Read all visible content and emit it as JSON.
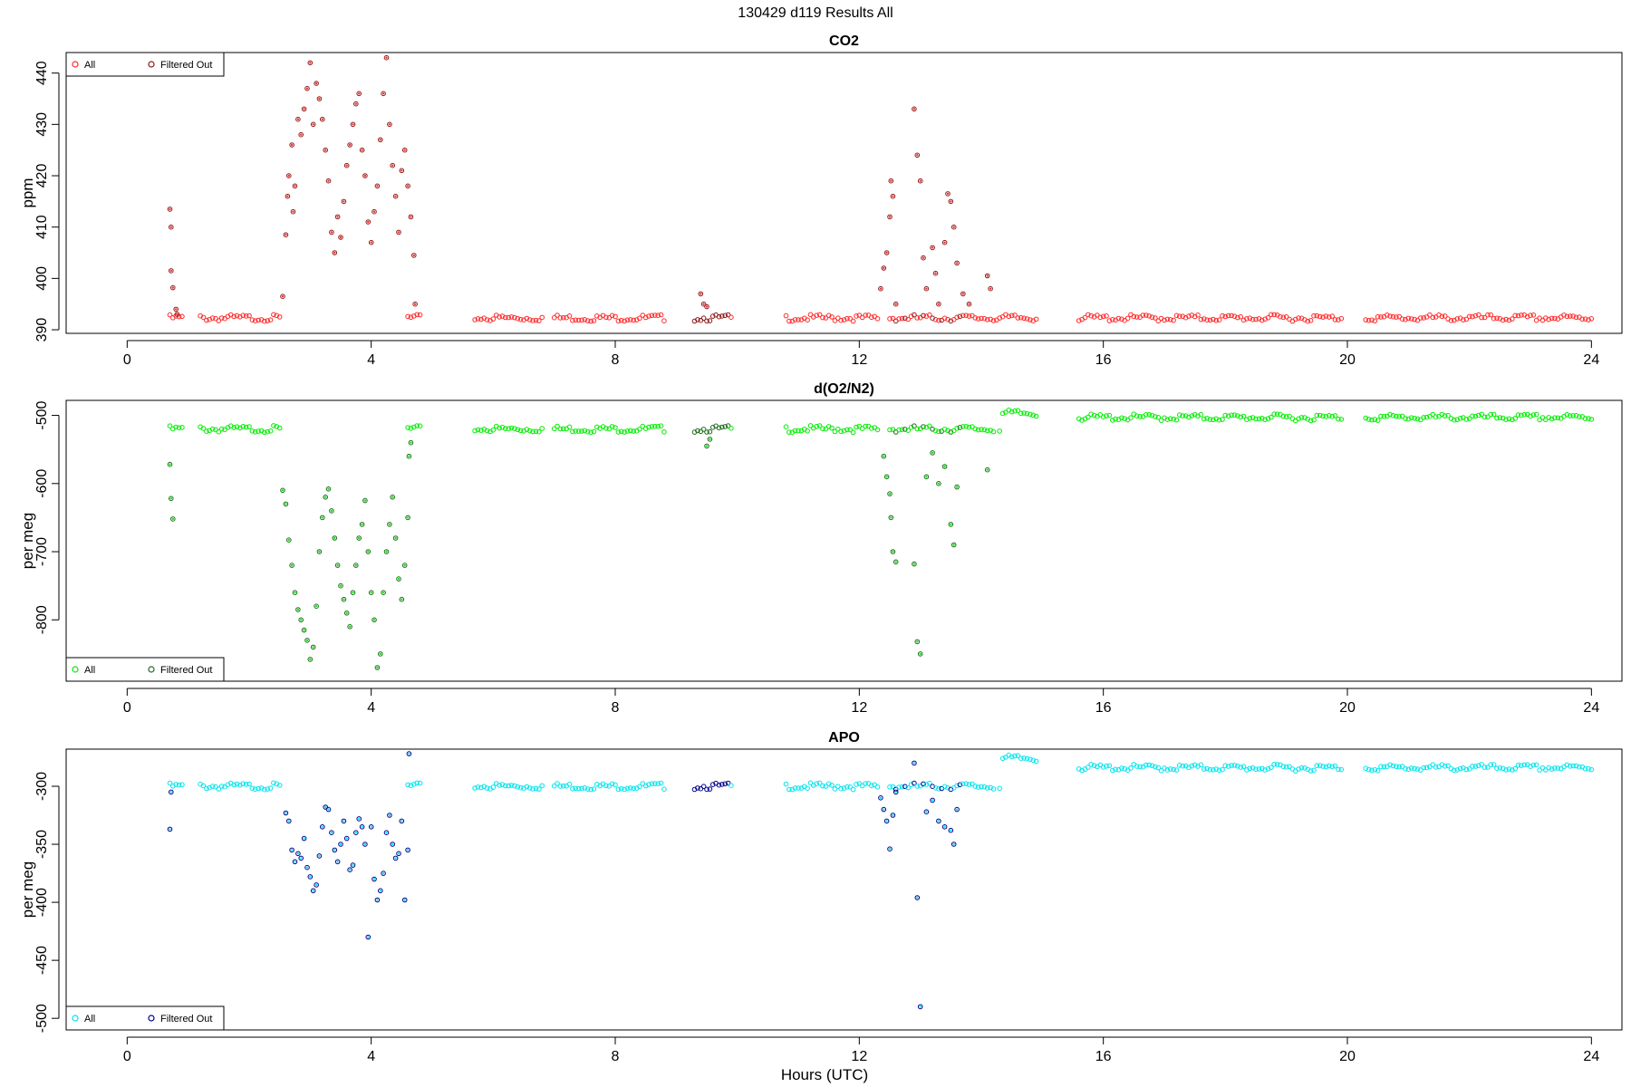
{
  "figure": {
    "title": "130429   d119   Results All",
    "xlabel": "Hours (UTC)"
  },
  "chart_data": [
    {
      "type": "scatter",
      "title": "CO2",
      "ylabel": "ppm",
      "xlim": [
        -1,
        24.5
      ],
      "ylim": [
        389.3,
        444
      ],
      "xticks": [
        0,
        4,
        8,
        12,
        16,
        20,
        24
      ],
      "yticks": [
        390,
        400,
        410,
        420,
        430,
        440
      ],
      "legend_position": "top-left",
      "series": [
        {
          "name": "All",
          "color": "#ff2a2a",
          "marker": "circle"
        },
        {
          "name": "Filtered Out",
          "color": "#8b1a1a",
          "marker": "circle"
        }
      ],
      "segments": [
        [
          0.7,
          0.9
        ],
        [
          1.2,
          2.5
        ],
        [
          4.6,
          4.8
        ],
        [
          5.7,
          6.8
        ],
        [
          7.0,
          8.8
        ],
        [
          9.3,
          9.9
        ],
        [
          10.8,
          12.3
        ],
        [
          12.5,
          14.9
        ],
        [
          15.6,
          19.9
        ],
        [
          20.3,
          24.0
        ]
      ],
      "baseline": 392.3,
      "anomalies": [
        {
          "x": 0.7,
          "y": 413.5
        },
        {
          "x": 0.72,
          "y": 410
        },
        {
          "x": 0.72,
          "y": 401.5
        },
        {
          "x": 0.75,
          "y": 398.2
        },
        {
          "x": 0.8,
          "y": 394
        },
        {
          "x": 0.82,
          "y": 393
        },
        {
          "x": 2.55,
          "y": 396.5
        },
        {
          "x": 2.6,
          "y": 408.5
        },
        {
          "x": 2.63,
          "y": 416
        },
        {
          "x": 2.65,
          "y": 420
        },
        {
          "x": 2.7,
          "y": 426
        },
        {
          "x": 2.72,
          "y": 413
        },
        {
          "x": 2.75,
          "y": 418
        },
        {
          "x": 2.8,
          "y": 431
        },
        {
          "x": 2.85,
          "y": 428
        },
        {
          "x": 2.9,
          "y": 433
        },
        {
          "x": 2.95,
          "y": 437
        },
        {
          "x": 3.0,
          "y": 442
        },
        {
          "x": 3.05,
          "y": 430
        },
        {
          "x": 3.1,
          "y": 438
        },
        {
          "x": 3.15,
          "y": 435
        },
        {
          "x": 3.2,
          "y": 431
        },
        {
          "x": 3.25,
          "y": 425
        },
        {
          "x": 3.3,
          "y": 419
        },
        {
          "x": 3.35,
          "y": 409
        },
        {
          "x": 3.4,
          "y": 405
        },
        {
          "x": 3.45,
          "y": 412
        },
        {
          "x": 3.5,
          "y": 408
        },
        {
          "x": 3.55,
          "y": 415
        },
        {
          "x": 3.6,
          "y": 422
        },
        {
          "x": 3.65,
          "y": 426
        },
        {
          "x": 3.7,
          "y": 430
        },
        {
          "x": 3.75,
          "y": 434
        },
        {
          "x": 3.8,
          "y": 436
        },
        {
          "x": 3.85,
          "y": 425
        },
        {
          "x": 3.9,
          "y": 420
        },
        {
          "x": 3.95,
          "y": 411
        },
        {
          "x": 4.0,
          "y": 407
        },
        {
          "x": 4.05,
          "y": 413
        },
        {
          "x": 4.1,
          "y": 418
        },
        {
          "x": 4.15,
          "y": 427
        },
        {
          "x": 4.2,
          "y": 436
        },
        {
          "x": 4.25,
          "y": 443
        },
        {
          "x": 4.3,
          "y": 430
        },
        {
          "x": 4.35,
          "y": 422
        },
        {
          "x": 4.4,
          "y": 416
        },
        {
          "x": 4.45,
          "y": 409
        },
        {
          "x": 4.5,
          "y": 421
        },
        {
          "x": 4.55,
          "y": 425
        },
        {
          "x": 4.6,
          "y": 418
        },
        {
          "x": 4.65,
          "y": 412
        },
        {
          "x": 4.7,
          "y": 404.5
        },
        {
          "x": 4.72,
          "y": 395
        },
        {
          "x": 9.4,
          "y": 397
        },
        {
          "x": 9.45,
          "y": 395
        },
        {
          "x": 9.5,
          "y": 394.5
        },
        {
          "x": 12.35,
          "y": 398
        },
        {
          "x": 12.4,
          "y": 402
        },
        {
          "x": 12.45,
          "y": 405
        },
        {
          "x": 12.5,
          "y": 412
        },
        {
          "x": 12.52,
          "y": 419
        },
        {
          "x": 12.55,
          "y": 416
        },
        {
          "x": 12.6,
          "y": 395
        },
        {
          "x": 12.9,
          "y": 433
        },
        {
          "x": 12.95,
          "y": 424
        },
        {
          "x": 13.0,
          "y": 419
        },
        {
          "x": 13.05,
          "y": 404
        },
        {
          "x": 13.1,
          "y": 398
        },
        {
          "x": 13.2,
          "y": 406
        },
        {
          "x": 13.25,
          "y": 401
        },
        {
          "x": 13.3,
          "y": 395
        },
        {
          "x": 13.4,
          "y": 407
        },
        {
          "x": 13.45,
          "y": 416.5
        },
        {
          "x": 13.5,
          "y": 415
        },
        {
          "x": 13.55,
          "y": 410
        },
        {
          "x": 13.6,
          "y": 403
        },
        {
          "x": 13.7,
          "y": 397
        },
        {
          "x": 13.8,
          "y": 395
        },
        {
          "x": 14.1,
          "y": 400.5
        },
        {
          "x": 14.15,
          "y": 398
        }
      ]
    },
    {
      "type": "scatter",
      "title": "d(O2/N2)",
      "ylabel": "per meg",
      "xlim": [
        -1,
        24.5
      ],
      "ylim": [
        -890,
        -478
      ],
      "xticks": [
        0,
        4,
        8,
        12,
        16,
        20,
        24
      ],
      "yticks": [
        -500,
        -600,
        -700,
        -800
      ],
      "legend_position": "bottom-left",
      "series": [
        {
          "name": "All",
          "color": "#00ee00",
          "marker": "circle"
        },
        {
          "name": "Filtered Out",
          "color": "#1e6b1e",
          "marker": "circle"
        }
      ],
      "segments": [
        [
          0.7,
          0.9
        ],
        [
          1.2,
          2.5
        ],
        [
          4.6,
          4.8
        ],
        [
          5.7,
          6.8
        ],
        [
          7.0,
          8.8
        ],
        [
          9.3,
          9.9
        ],
        [
          10.8,
          12.3
        ],
        [
          12.5,
          14.2
        ],
        [
          14.3,
          14.9
        ],
        [
          15.6,
          19.9
        ],
        [
          20.3,
          24.0
        ]
      ],
      "baseline": -520,
      "anomalies": [
        {
          "x": 0.7,
          "y": -572
        },
        {
          "x": 0.72,
          "y": -622
        },
        {
          "x": 0.75,
          "y": -652
        },
        {
          "x": 2.55,
          "y": -610
        },
        {
          "x": 2.6,
          "y": -630
        },
        {
          "x": 2.65,
          "y": -683
        },
        {
          "x": 2.7,
          "y": -720
        },
        {
          "x": 2.75,
          "y": -760
        },
        {
          "x": 2.8,
          "y": -785
        },
        {
          "x": 2.85,
          "y": -800
        },
        {
          "x": 2.9,
          "y": -815
        },
        {
          "x": 2.95,
          "y": -830
        },
        {
          "x": 3.0,
          "y": -858
        },
        {
          "x": 3.05,
          "y": -840
        },
        {
          "x": 3.1,
          "y": -780
        },
        {
          "x": 3.15,
          "y": -700
        },
        {
          "x": 3.2,
          "y": -650
        },
        {
          "x": 3.25,
          "y": -620
        },
        {
          "x": 3.3,
          "y": -608
        },
        {
          "x": 3.35,
          "y": -640
        },
        {
          "x": 3.4,
          "y": -680
        },
        {
          "x": 3.45,
          "y": -720
        },
        {
          "x": 3.5,
          "y": -750
        },
        {
          "x": 3.55,
          "y": -770
        },
        {
          "x": 3.6,
          "y": -790
        },
        {
          "x": 3.65,
          "y": -810
        },
        {
          "x": 3.7,
          "y": -760
        },
        {
          "x": 3.75,
          "y": -720
        },
        {
          "x": 3.8,
          "y": -680
        },
        {
          "x": 3.85,
          "y": -660
        },
        {
          "x": 3.9,
          "y": -625
        },
        {
          "x": 3.95,
          "y": -700
        },
        {
          "x": 4.0,
          "y": -760
        },
        {
          "x": 4.05,
          "y": -800
        },
        {
          "x": 4.1,
          "y": -870
        },
        {
          "x": 4.15,
          "y": -850
        },
        {
          "x": 4.2,
          "y": -760
        },
        {
          "x": 4.25,
          "y": -700
        },
        {
          "x": 4.3,
          "y": -660
        },
        {
          "x": 4.35,
          "y": -620
        },
        {
          "x": 4.4,
          "y": -680
        },
        {
          "x": 4.45,
          "y": -740
        },
        {
          "x": 4.5,
          "y": -770
        },
        {
          "x": 4.55,
          "y": -720
        },
        {
          "x": 4.6,
          "y": -650
        },
        {
          "x": 4.62,
          "y": -560
        },
        {
          "x": 4.65,
          "y": -540
        },
        {
          "x": 9.5,
          "y": -545
        },
        {
          "x": 9.55,
          "y": -535
        },
        {
          "x": 12.4,
          "y": -560
        },
        {
          "x": 12.45,
          "y": -590
        },
        {
          "x": 12.5,
          "y": -615
        },
        {
          "x": 12.52,
          "y": -650
        },
        {
          "x": 12.55,
          "y": -700
        },
        {
          "x": 12.6,
          "y": -715
        },
        {
          "x": 12.9,
          "y": -718
        },
        {
          "x": 12.95,
          "y": -832
        },
        {
          "x": 13.0,
          "y": -850
        },
        {
          "x": 13.1,
          "y": -590
        },
        {
          "x": 13.2,
          "y": -555
        },
        {
          "x": 13.3,
          "y": -600
        },
        {
          "x": 13.4,
          "y": -575
        },
        {
          "x": 13.5,
          "y": -660
        },
        {
          "x": 13.55,
          "y": -690
        },
        {
          "x": 13.6,
          "y": -605
        },
        {
          "x": 14.1,
          "y": -580
        }
      ]
    },
    {
      "type": "scatter",
      "title": "APO",
      "ylabel": "per meg",
      "xlim": [
        -1,
        24.5
      ],
      "ylim": [
        -510,
        -268
      ],
      "xticks": [
        0,
        4,
        8,
        12,
        16,
        20,
        24
      ],
      "yticks": [
        -300,
        -350,
        -400,
        -450,
        -500
      ],
      "legend_position": "bottom-left",
      "series": [
        {
          "name": "All",
          "color": "#00e5ee",
          "marker": "circle"
        },
        {
          "name": "Filtered Out",
          "color": "#00008b",
          "marker": "circle"
        }
      ],
      "segments": [
        [
          0.7,
          0.9
        ],
        [
          1.2,
          2.5
        ],
        [
          4.6,
          4.8
        ],
        [
          5.7,
          6.8
        ],
        [
          7.0,
          8.8
        ],
        [
          9.3,
          9.9
        ],
        [
          10.8,
          12.3
        ],
        [
          12.5,
          14.2
        ],
        [
          14.3,
          14.9
        ],
        [
          15.6,
          19.9
        ],
        [
          20.3,
          24.0
        ]
      ],
      "baseline": -300,
      "anomalies": [
        {
          "x": 0.7,
          "y": -337
        },
        {
          "x": 0.72,
          "y": -305
        },
        {
          "x": 2.6,
          "y": -323
        },
        {
          "x": 2.65,
          "y": -330
        },
        {
          "x": 2.7,
          "y": -355
        },
        {
          "x": 2.75,
          "y": -365
        },
        {
          "x": 2.8,
          "y": -358
        },
        {
          "x": 2.85,
          "y": -362
        },
        {
          "x": 2.9,
          "y": -345
        },
        {
          "x": 2.95,
          "y": -370
        },
        {
          "x": 3.0,
          "y": -378
        },
        {
          "x": 3.05,
          "y": -390
        },
        {
          "x": 3.1,
          "y": -385
        },
        {
          "x": 3.15,
          "y": -360
        },
        {
          "x": 3.2,
          "y": -335
        },
        {
          "x": 3.25,
          "y": -318
        },
        {
          "x": 3.3,
          "y": -320
        },
        {
          "x": 3.35,
          "y": -340
        },
        {
          "x": 3.4,
          "y": -355
        },
        {
          "x": 3.45,
          "y": -365
        },
        {
          "x": 3.5,
          "y": -350
        },
        {
          "x": 3.55,
          "y": -330
        },
        {
          "x": 3.6,
          "y": -345
        },
        {
          "x": 3.65,
          "y": -372
        },
        {
          "x": 3.7,
          "y": -368
        },
        {
          "x": 3.75,
          "y": -340
        },
        {
          "x": 3.8,
          "y": -328
        },
        {
          "x": 3.85,
          "y": -335
        },
        {
          "x": 3.9,
          "y": -350
        },
        {
          "x": 3.95,
          "y": -430
        },
        {
          "x": 4.0,
          "y": -335
        },
        {
          "x": 4.05,
          "y": -380
        },
        {
          "x": 4.1,
          "y": -398
        },
        {
          "x": 4.15,
          "y": -390
        },
        {
          "x": 4.2,
          "y": -375
        },
        {
          "x": 4.25,
          "y": -340
        },
        {
          "x": 4.3,
          "y": -325
        },
        {
          "x": 4.35,
          "y": -350
        },
        {
          "x": 4.4,
          "y": -362
        },
        {
          "x": 4.45,
          "y": -358
        },
        {
          "x": 4.5,
          "y": -330
        },
        {
          "x": 4.55,
          "y": -398
        },
        {
          "x": 4.6,
          "y": -355
        },
        {
          "x": 4.62,
          "y": -272
        },
        {
          "x": 12.35,
          "y": -310
        },
        {
          "x": 12.4,
          "y": -320
        },
        {
          "x": 12.45,
          "y": -330
        },
        {
          "x": 12.5,
          "y": -354
        },
        {
          "x": 12.55,
          "y": -325
        },
        {
          "x": 12.6,
          "y": -305
        },
        {
          "x": 12.9,
          "y": -280
        },
        {
          "x": 12.95,
          "y": -396
        },
        {
          "x": 13.0,
          "y": -490
        },
        {
          "x": 13.1,
          "y": -322
        },
        {
          "x": 13.2,
          "y": -312
        },
        {
          "x": 13.3,
          "y": -330
        },
        {
          "x": 13.4,
          "y": -335
        },
        {
          "x": 13.5,
          "y": -338
        },
        {
          "x": 13.55,
          "y": -350
        },
        {
          "x": 13.6,
          "y": -320
        }
      ]
    }
  ]
}
